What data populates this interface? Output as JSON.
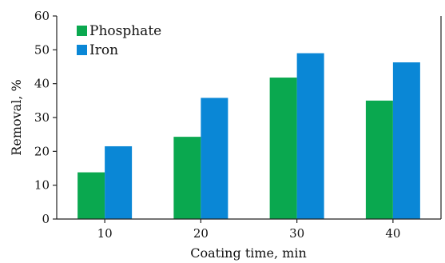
{
  "chart_data": {
    "type": "bar",
    "categories": [
      "10",
      "20",
      "30",
      "40"
    ],
    "series": [
      {
        "name": "Phosphate",
        "values": [
          13.8,
          24.3,
          41.8,
          35.0
        ],
        "color": "#0aa84f"
      },
      {
        "name": "Iron",
        "values": [
          21.5,
          35.8,
          49.0,
          46.3
        ],
        "color": "#0a87d6"
      }
    ],
    "title": "",
    "xlabel": "Coating time, min",
    "ylabel": "Removal, %",
    "ylim": [
      0,
      60
    ],
    "yticks": [
      0,
      10,
      20,
      30,
      40,
      50,
      60
    ],
    "grid": false,
    "legend_position": "top-left"
  }
}
